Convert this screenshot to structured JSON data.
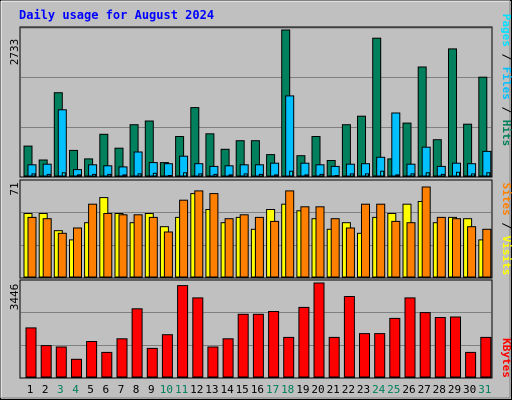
{
  "title": "Daily usage for August 2024",
  "colors": {
    "background": "#c0c0c0",
    "title": "#0000ff",
    "grid": "#808080",
    "hits": "#00805c",
    "files": "#00c0ff",
    "pages": "#00e0ff",
    "visits": "#ffff00",
    "sites": "#ff8000",
    "kbytes": "#ff0000",
    "weekend_day": "#00805c",
    "weekday": "#000000"
  },
  "legend": {
    "panel1": {
      "pages": "Pages",
      "files": "Files",
      "hits": "Hits",
      "separator": " / "
    },
    "panel2": {
      "sites": "Sites",
      "visits": "Visits",
      "separator": " / "
    },
    "panel3": {
      "kbytes": "KBytes"
    }
  },
  "chart_data": [
    {
      "type": "bar",
      "panel": "hits-files-pages",
      "ymax_label": "2733",
      "ylim": [
        0,
        2733
      ],
      "categories": [
        "1",
        "2",
        "3",
        "4",
        "5",
        "6",
        "7",
        "8",
        "9",
        "10",
        "11",
        "12",
        "13",
        "14",
        "15",
        "16",
        "17",
        "18",
        "19",
        "20",
        "21",
        "22",
        "23",
        "24",
        "25",
        "26",
        "27",
        "28",
        "29",
        "30",
        "31"
      ],
      "series": [
        {
          "name": "Hits",
          "values": [
            560,
            300,
            1560,
            480,
            320,
            780,
            520,
            960,
            1030,
            250,
            740,
            1280,
            790,
            500,
            660,
            660,
            400,
            2733,
            380,
            740,
            290,
            960,
            1120,
            2580,
            320,
            990,
            2040,
            680,
            2380,
            970,
            1850
          ]
        },
        {
          "name": "Files",
          "values": [
            210,
            220,
            1240,
            120,
            210,
            190,
            170,
            450,
            250,
            230,
            370,
            230,
            180,
            190,
            210,
            210,
            240,
            1500,
            240,
            210,
            180,
            220,
            230,
            350,
            1180,
            220,
            540,
            180,
            240,
            230,
            460
          ]
        },
        {
          "name": "Pages",
          "values": [
            40,
            30,
            60,
            20,
            30,
            30,
            20,
            40,
            50,
            10,
            60,
            40,
            30,
            20,
            40,
            30,
            20,
            90,
            20,
            30,
            10,
            40,
            40,
            90,
            20,
            40,
            60,
            30,
            70,
            40,
            60
          ]
        }
      ]
    },
    {
      "type": "bar",
      "panel": "visits-sites",
      "ymax_label": "71",
      "ylim": [
        0,
        71
      ],
      "categories": [
        "1",
        "2",
        "3",
        "4",
        "5",
        "6",
        "7",
        "8",
        "9",
        "10",
        "11",
        "12",
        "13",
        "14",
        "15",
        "16",
        "17",
        "18",
        "19",
        "20",
        "21",
        "22",
        "23",
        "24",
        "25",
        "26",
        "27",
        "28",
        "29",
        "30",
        "31"
      ],
      "series": [
        {
          "name": "Visits",
          "values": [
            48,
            48,
            35,
            28,
            41,
            60,
            48,
            41,
            48,
            38,
            45,
            63,
            51,
            41,
            45,
            36,
            51,
            55,
            50,
            44,
            36,
            41,
            33,
            45,
            48,
            55,
            57,
            41,
            45,
            44,
            28
          ]
        },
        {
          "name": "Sites",
          "values": [
            45,
            44,
            33,
            37,
            55,
            48,
            47,
            47,
            45,
            34,
            58,
            65,
            63,
            44,
            47,
            45,
            42,
            65,
            53,
            53,
            44,
            37,
            55,
            55,
            42,
            41,
            68,
            45,
            44,
            38,
            36
          ]
        }
      ]
    },
    {
      "type": "bar",
      "panel": "kbytes",
      "ymax_label": "3446",
      "ylim": [
        0,
        3446
      ],
      "categories": [
        "1",
        "2",
        "3",
        "4",
        "5",
        "6",
        "7",
        "8",
        "9",
        "10",
        "11",
        "12",
        "13",
        "14",
        "15",
        "16",
        "17",
        "18",
        "19",
        "20",
        "21",
        "22",
        "23",
        "24",
        "25",
        "26",
        "27",
        "28",
        "29",
        "30",
        "31"
      ],
      "series": [
        {
          "name": "KBytes",
          "values": [
            1800,
            1150,
            1100,
            650,
            1300,
            900,
            1400,
            2500,
            1050,
            1550,
            3350,
            2900,
            1100,
            1400,
            2300,
            2300,
            2400,
            1450,
            2550,
            3446,
            1450,
            2950,
            1590,
            1590,
            2150,
            2900,
            2360,
            2180,
            2200,
            900,
            1450
          ]
        }
      ]
    }
  ],
  "x_axis": {
    "days": [
      "1",
      "2",
      "3",
      "4",
      "5",
      "6",
      "7",
      "8",
      "9",
      "10",
      "11",
      "12",
      "13",
      "14",
      "15",
      "16",
      "17",
      "18",
      "19",
      "20",
      "21",
      "22",
      "23",
      "24",
      "25",
      "26",
      "27",
      "28",
      "29",
      "30",
      "31"
    ],
    "weekend_days": [
      "3",
      "4",
      "10",
      "11",
      "17",
      "18",
      "24",
      "25",
      "31"
    ]
  }
}
